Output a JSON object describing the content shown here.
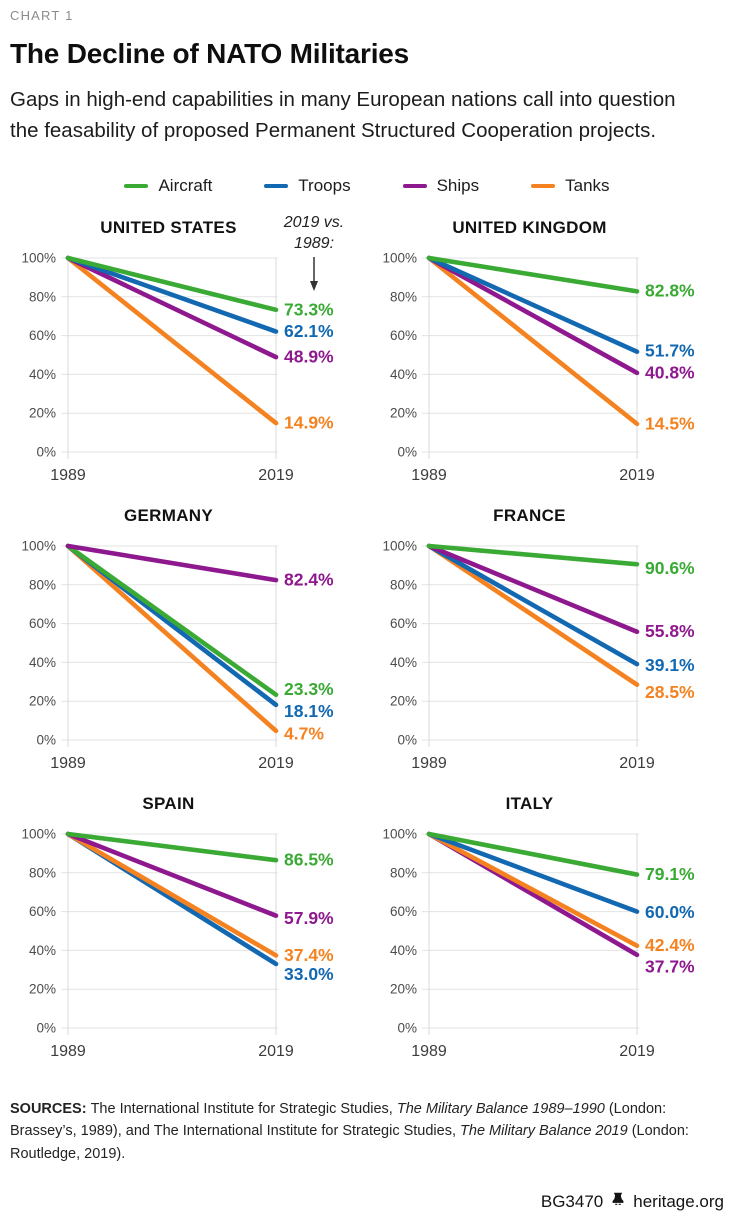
{
  "header": {
    "kicker": "CHART 1",
    "title": "The Decline of NATO Militaries",
    "subtitle_lines": {
      "0": "Gaps in high-end capabilities in many European nations call into question",
      "1": "the feasability of proposed Permanent Structured Cooperation projects."
    }
  },
  "legend": [
    {
      "label": "Aircraft",
      "color": "#3aaa35"
    },
    {
      "label": "Troops",
      "color": "#1268b1"
    },
    {
      "label": "Ships",
      "color": "#8e188e"
    },
    {
      "label": "Tanks",
      "color": "#f58220"
    }
  ],
  "colors": {
    "grid": "#e3e3e3",
    "axis_line": "#d8d8d8",
    "ytick_text": "#4c4c4c",
    "xtick_text": "#3c3c3c",
    "annotation_arrow": "#333333"
  },
  "chart_data": {
    "type": "line",
    "x": [
      "1989",
      "2019"
    ],
    "ylim": [
      0,
      100
    ],
    "ytick_labels": [
      "100%",
      "80%",
      "60%",
      "40%",
      "20%",
      "0%"
    ],
    "start_value": 100,
    "series_names": [
      "Aircraft",
      "Troops",
      "Ships",
      "Tanks"
    ],
    "legend_position": "top-center",
    "grid": true,
    "annotation": {
      "lines": {
        "0": "2019 vs.",
        "1": "1989:"
      },
      "applies_to": "UNITED STATES"
    },
    "charts": [
      {
        "title": "UNITED STATES",
        "values": [
          73.3,
          62.1,
          48.9,
          14.9
        ],
        "value_labels": [
          "73.3%",
          "62.1%",
          "48.9%",
          "14.9%"
        ],
        "label_pct": [
          73.3,
          62.1,
          48.9,
          14.9
        ]
      },
      {
        "title": "UNITED KINGDOM",
        "values": [
          82.8,
          51.7,
          40.8,
          14.5
        ],
        "value_labels": [
          "82.8%",
          "51.7%",
          "40.8%",
          "14.5%"
        ],
        "label_pct": [
          83.0,
          52.0,
          40.8,
          14.5
        ]
      },
      {
        "title": "GERMANY",
        "values": [
          23.3,
          18.1,
          82.4,
          4.7
        ],
        "value_labels": [
          "23.3%",
          "18.1%",
          "82.4%",
          "4.7%"
        ],
        "label_pct": [
          26.0,
          14.8,
          82.4,
          3.2
        ]
      },
      {
        "title": "FRANCE",
        "values": [
          90.6,
          39.1,
          55.8,
          28.5
        ],
        "value_labels": [
          "90.6%",
          "39.1%",
          "55.8%",
          "28.5%"
        ],
        "label_pct": [
          88.5,
          38.5,
          55.8,
          24.5
        ]
      },
      {
        "title": "SPAIN",
        "values": [
          86.5,
          33.0,
          57.9,
          37.4
        ],
        "value_labels": [
          "86.5%",
          "33.0%",
          "57.9%",
          "37.4%"
        ],
        "label_pct": [
          86.5,
          27.5,
          56.5,
          37.5
        ]
      },
      {
        "title": "ITALY",
        "values": [
          79.1,
          60.0,
          37.7,
          42.4
        ],
        "value_labels": [
          "79.1%",
          "60.0%",
          "37.7%",
          "42.4%"
        ],
        "label_pct": [
          79.1,
          59.5,
          31.5,
          42.5
        ]
      }
    ]
  },
  "footer": {
    "sources_segments": [
      {
        "t": "SOURCES: ",
        "b": true
      },
      {
        "t": "The International Institute for Strategic Studies, "
      },
      {
        "t": "The Military Balance 1989–1990",
        "i": true
      },
      {
        "t": " (London: Brassey’s, 1989), and The International Institute for Strategic Studies, "
      },
      {
        "t": "The Military Balance 2019",
        "i": true
      },
      {
        "t": " (London: Routledge, 2019)."
      }
    ],
    "doc_id": "BG3470",
    "site": "heritage.org"
  }
}
